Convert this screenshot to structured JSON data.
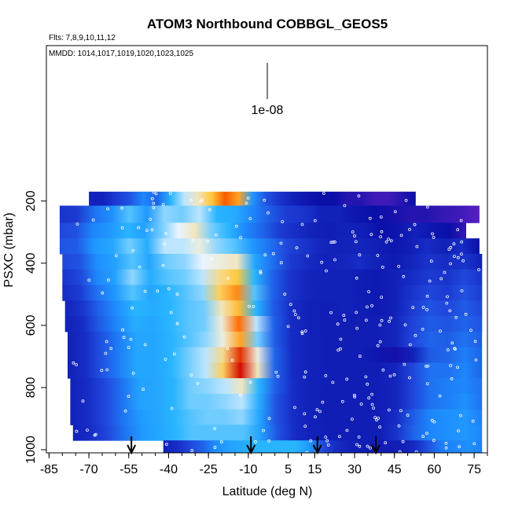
{
  "chart_data": {
    "type": "heatmap",
    "title": "ATOM3 Northbound COBBGL_GEOS5",
    "flights_label": "Flts: 7,8,9,10,11,12",
    "dates_label": "MMDD: 1014,1017,1019,1020,1023,1025",
    "legend_label": "1e-08",
    "xlabel": "Latitude (deg N)",
    "ylabel": "PSXC (mbar)",
    "x_ticks": [
      "-85",
      "-70",
      "-55",
      "-40",
      "-25",
      "-10",
      "5",
      "15",
      "30",
      "45",
      "60",
      "75"
    ],
    "x_tick_values": [
      -85,
      -70,
      -55,
      -40,
      -25,
      -10,
      5,
      15,
      30,
      45,
      60,
      75
    ],
    "y_ticks": [
      "200",
      "400",
      "600",
      "800",
      "1000"
    ],
    "y_tick_values": [
      200,
      400,
      600,
      800,
      1000
    ],
    "xlim": [
      -86,
      80
    ],
    "ylim": [
      1010,
      -300
    ],
    "pressure_levels": [
      170,
      215,
      270,
      320,
      370,
      420,
      470,
      520,
      570,
      620,
      670,
      720,
      770,
      820,
      870,
      920,
      970,
      1010
    ],
    "row_extents": [
      [
        -70,
        53
      ],
      [
        -81,
        77
      ],
      [
        -81,
        72
      ],
      [
        -81,
        77
      ],
      [
        -80,
        78
      ],
      [
        -80,
        78
      ],
      [
        -80,
        78
      ],
      [
        -79,
        78
      ],
      [
        -79,
        78
      ],
      [
        -78,
        78
      ],
      [
        -78,
        78
      ],
      [
        -78,
        78
      ],
      [
        -77,
        78
      ],
      [
        -77,
        78
      ],
      [
        -77,
        78
      ],
      [
        -76,
        78
      ],
      [
        -42,
        78
      ]
    ],
    "profile_arrows_lat": [
      -54,
      -9,
      16,
      38
    ],
    "colors": {
      "low": "#0a0fa8",
      "mid": "#1e90ff",
      "high_light": "#e8f4ff",
      "peak": "#cc0000",
      "upper": "#5a20c0"
    },
    "value_scale": [
      0,
      1
    ],
    "rows": [
      [
        0.05,
        0.05,
        0.12,
        0.18,
        0.3,
        0.22,
        0.45,
        0.55,
        0.62,
        0.7,
        0.85,
        0.75,
        0.35,
        0.18,
        0.1,
        0.05,
        0.02,
        0.0,
        0.0,
        -0.05,
        -0.05,
        -0.1,
        -0.1,
        -0.05,
        0.0
      ],
      [
        0.1,
        0.12,
        0.25,
        0.32,
        0.48,
        0.35,
        0.52,
        0.5,
        0.55,
        0.45,
        0.42,
        0.3,
        0.2,
        0.12,
        0.1,
        0.05,
        0.05,
        0.02,
        0.0,
        -0.02,
        -0.05,
        -0.05,
        -0.08,
        -0.1,
        -0.15
      ],
      [
        0.15,
        0.18,
        0.3,
        0.35,
        0.45,
        0.38,
        0.5,
        0.58,
        0.62,
        0.5,
        0.45,
        0.3,
        0.22,
        0.12,
        0.08,
        0.05,
        0.04,
        0.05,
        0.04,
        0.0,
        0.02,
        0.05,
        0.02,
        0.0,
        -0.08
      ],
      [
        0.18,
        0.2,
        0.35,
        0.4,
        0.5,
        0.42,
        0.55,
        0.55,
        0.6,
        0.52,
        0.48,
        0.35,
        0.25,
        0.15,
        0.1,
        0.06,
        0.05,
        0.06,
        0.05,
        0.02,
        0.04,
        0.08,
        0.05,
        0.08,
        0.0
      ],
      [
        0.15,
        0.18,
        0.32,
        0.38,
        0.48,
        0.4,
        0.5,
        0.52,
        0.58,
        0.6,
        0.62,
        0.4,
        0.25,
        0.12,
        0.08,
        0.05,
        0.06,
        0.08,
        0.05,
        0.03,
        0.06,
        0.1,
        0.08,
        0.1,
        0.05
      ],
      [
        0.1,
        0.15,
        0.3,
        0.38,
        0.52,
        0.42,
        0.48,
        0.5,
        0.55,
        0.65,
        0.7,
        0.45,
        0.22,
        0.1,
        0.06,
        0.05,
        0.05,
        0.04,
        0.03,
        0.05,
        0.08,
        0.12,
        0.1,
        0.15,
        0.1
      ],
      [
        0.08,
        0.12,
        0.25,
        0.35,
        0.48,
        0.4,
        0.45,
        0.48,
        0.52,
        0.68,
        0.78,
        0.48,
        0.22,
        0.1,
        0.06,
        0.05,
        0.05,
        0.04,
        0.03,
        0.05,
        0.1,
        0.15,
        0.12,
        0.18,
        0.12
      ],
      [
        0.06,
        0.1,
        0.22,
        0.32,
        0.45,
        0.42,
        0.45,
        0.48,
        0.5,
        0.62,
        0.72,
        0.45,
        0.2,
        0.08,
        0.05,
        0.04,
        0.05,
        0.04,
        0.03,
        0.05,
        0.12,
        0.18,
        0.15,
        0.2,
        0.15
      ],
      [
        0.05,
        0.08,
        0.2,
        0.3,
        0.42,
        0.4,
        0.45,
        0.48,
        0.5,
        0.6,
        0.82,
        0.55,
        0.22,
        0.08,
        0.05,
        0.04,
        0.04,
        0.04,
        0.04,
        0.06,
        0.14,
        0.2,
        0.18,
        0.22,
        0.18
      ],
      [
        0.05,
        0.08,
        0.18,
        0.28,
        0.4,
        0.4,
        0.45,
        0.48,
        0.52,
        0.6,
        0.75,
        0.5,
        0.2,
        0.08,
        0.05,
        0.04,
        0.04,
        0.04,
        0.04,
        0.06,
        0.15,
        0.22,
        0.2,
        0.25,
        0.2
      ],
      [
        0.05,
        0.08,
        0.18,
        0.28,
        0.4,
        0.4,
        0.45,
        0.5,
        0.55,
        0.65,
        0.92,
        0.6,
        0.22,
        0.08,
        0.05,
        0.04,
        0.04,
        0.04,
        0.02,
        -0.02,
        0.05,
        0.2,
        0.22,
        0.28,
        0.22
      ],
      [
        0.05,
        0.08,
        0.18,
        0.28,
        0.4,
        0.4,
        0.45,
        0.5,
        0.55,
        0.68,
        0.98,
        0.62,
        0.22,
        0.08,
        0.05,
        0.04,
        0.04,
        0.04,
        0.04,
        0.06,
        0.15,
        0.25,
        0.25,
        0.3,
        0.22
      ],
      [
        0.05,
        0.08,
        0.15,
        0.25,
        0.38,
        0.4,
        0.45,
        0.5,
        0.52,
        0.55,
        0.62,
        0.45,
        0.2,
        0.08,
        0.05,
        0.04,
        0.04,
        0.04,
        0.04,
        0.06,
        0.15,
        0.25,
        0.28,
        0.3,
        0.25
      ],
      [
        0.05,
        0.08,
        0.15,
        0.25,
        0.38,
        0.4,
        0.45,
        0.5,
        0.5,
        0.52,
        0.55,
        0.42,
        0.18,
        0.08,
        0.05,
        0.04,
        0.04,
        0.04,
        0.04,
        0.06,
        0.15,
        0.25,
        0.28,
        0.32,
        0.25
      ],
      [
        0.05,
        0.08,
        0.15,
        0.25,
        0.35,
        0.4,
        0.45,
        0.48,
        0.5,
        0.5,
        0.52,
        0.4,
        0.18,
        0.08,
        0.05,
        0.04,
        0.04,
        0.04,
        0.04,
        0.08,
        0.2,
        0.3,
        0.32,
        0.35,
        0.28
      ],
      [
        0.05,
        0.08,
        0.15,
        0.25,
        0.35,
        0.4,
        0.45,
        0.48,
        0.48,
        0.48,
        0.48,
        0.38,
        0.18,
        0.08,
        0.05,
        0.04,
        0.04,
        0.04,
        0.04,
        0.1,
        0.22,
        0.3,
        0.32,
        0.35,
        0.3
      ],
      [
        0.05,
        0.08,
        0.15,
        0.22,
        0.32,
        0.38,
        0.42,
        0.45,
        0.45,
        0.45,
        0.45,
        0.35,
        0.16,
        0.08,
        0.05,
        0.04,
        0.04,
        0.04,
        0.04,
        0.08,
        0.18,
        0.28,
        0.3,
        0.32,
        0.28
      ]
    ]
  }
}
